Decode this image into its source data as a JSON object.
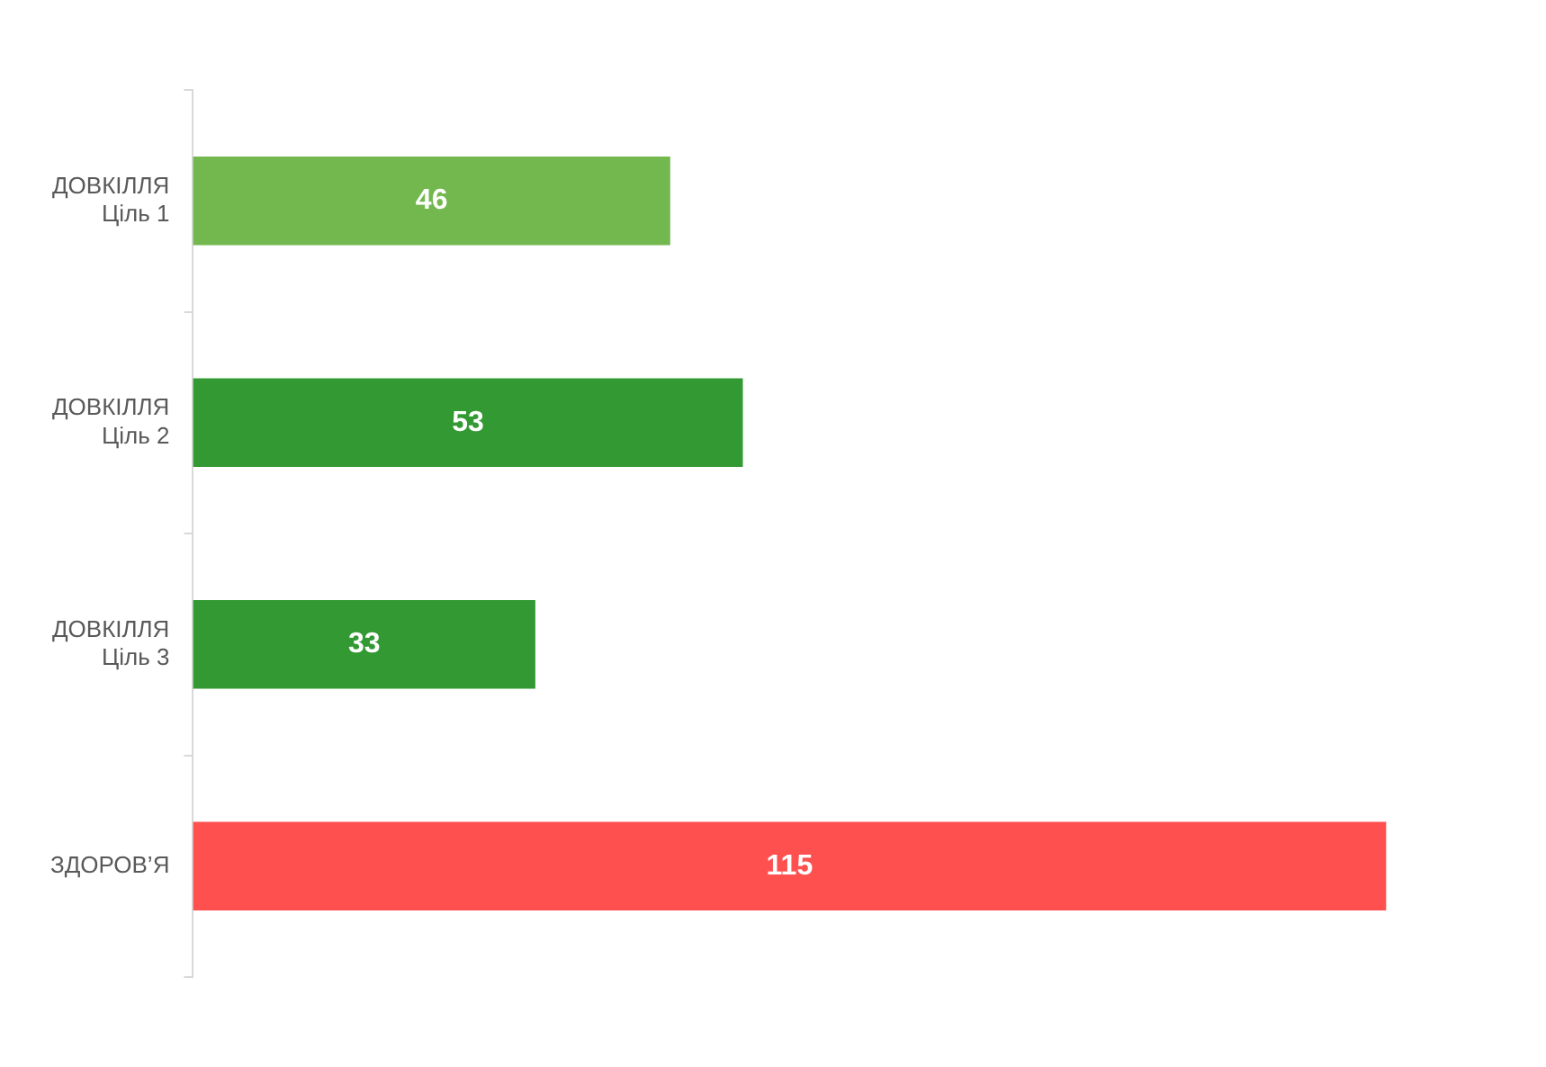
{
  "chart_data": {
    "type": "bar",
    "orientation": "horizontal",
    "categories": [
      "ДОВКІЛЛЯ\nЦіль 1",
      "ДОВКІЛЛЯ\nЦіль 2",
      "ДОВКІЛЛЯ\nЦіль 3",
      "ЗДОРОВ’Я"
    ],
    "values": [
      46,
      53,
      33,
      115
    ],
    "colors": [
      "#72b84e",
      "#339933",
      "#339933",
      "#ff5050"
    ],
    "data_labels": true,
    "grid": false,
    "legend": false
  }
}
